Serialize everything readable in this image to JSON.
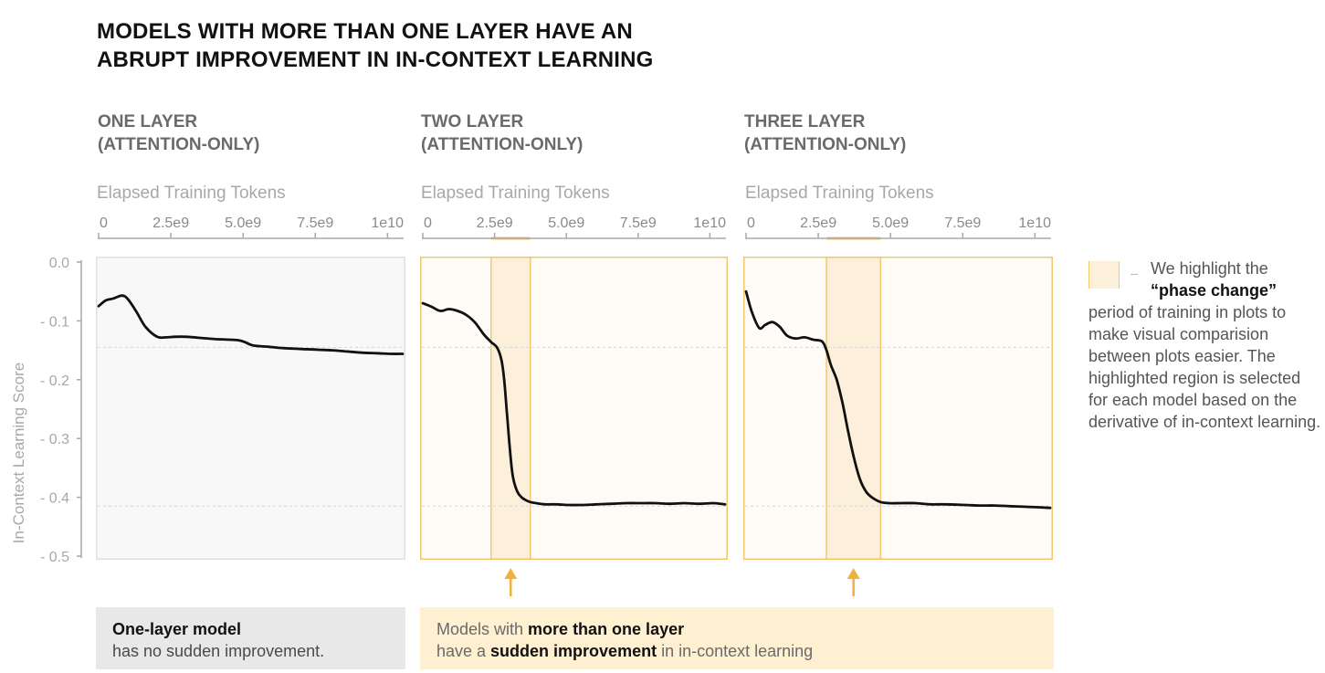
{
  "title_line1": "MODELS WITH MORE THAN ONE LAYER HAVE AN",
  "title_line2": "ABRUPT IMPROVEMENT IN IN-CONTEXT LEARNING",
  "y_axis_label": "In-Context Learning Score",
  "chart_data": [
    {
      "type": "line",
      "panel": "one",
      "title_line1": "ONE LAYER",
      "title_line2": "(ATTENTION-ONLY)",
      "xlabel": "Elapsed Training Tokens",
      "x_ticks": [
        "0",
        "2.5e9",
        "5.0e9",
        "7.5e9",
        "1e10"
      ],
      "x_tick_values": [
        0,
        2.5,
        5.0,
        7.5,
        10
      ],
      "xlim": [
        0,
        10.4
      ],
      "ylim": [
        0,
        -0.5
      ],
      "y_ticks": [
        "0.0",
        "- 0.1",
        "- 0.2",
        "- 0.3",
        "- 0.4",
        "- 0.5"
      ],
      "y_tick_values": [
        0,
        -0.1,
        -0.2,
        -0.3,
        -0.4,
        -0.5
      ],
      "reference_lines": [
        -0.145,
        -0.415
      ],
      "highlight": null,
      "series": [
        {
          "name": "ICL score",
          "x": [
            0,
            0.25,
            0.5,
            0.8,
            1.0,
            1.3,
            1.6,
            2.0,
            2.3,
            2.6,
            3.0,
            3.5,
            4.0,
            4.5,
            4.8,
            5.0,
            5.3,
            5.8,
            6.2,
            6.6,
            7.0,
            7.5,
            8.0,
            8.5,
            9.0,
            9.5,
            10.0,
            10.4
          ],
          "y": [
            -0.075,
            -0.065,
            -0.062,
            -0.057,
            -0.063,
            -0.085,
            -0.11,
            -0.127,
            -0.128,
            -0.127,
            -0.127,
            -0.129,
            -0.131,
            -0.132,
            -0.133,
            -0.136,
            -0.142,
            -0.144,
            -0.146,
            -0.147,
            -0.148,
            -0.149,
            -0.15,
            -0.152,
            -0.154,
            -0.155,
            -0.156,
            -0.156
          ]
        }
      ]
    },
    {
      "type": "line",
      "panel": "two",
      "title_line1": "TWO LAYER",
      "title_line2": "(ATTENTION-ONLY)",
      "xlabel": "Elapsed Training Tokens",
      "x_ticks": [
        "0",
        "2.5e9",
        "5.0e9",
        "7.5e9",
        "1e10"
      ],
      "x_tick_values": [
        0,
        2.5,
        5.0,
        7.5,
        10
      ],
      "xlim": [
        0,
        10.4
      ],
      "ylim": [
        0,
        -0.5
      ],
      "reference_lines": [
        -0.145,
        -0.415
      ],
      "highlight": [
        2.35,
        3.7
      ],
      "series": [
        {
          "name": "ICL score",
          "x": [
            0,
            0.3,
            0.6,
            0.9,
            1.2,
            1.5,
            1.8,
            2.1,
            2.35,
            2.55,
            2.7,
            2.8,
            2.9,
            3.0,
            3.1,
            3.25,
            3.4,
            3.55,
            3.7,
            3.9,
            4.2,
            4.6,
            5.0,
            5.5,
            6.0,
            6.5,
            7.0,
            7.5,
            8.0,
            8.5,
            9.0,
            9.5,
            10.0,
            10.4
          ],
          "y": [
            -0.07,
            -0.076,
            -0.083,
            -0.08,
            -0.083,
            -0.09,
            -0.103,
            -0.123,
            -0.136,
            -0.145,
            -0.165,
            -0.2,
            -0.26,
            -0.32,
            -0.365,
            -0.39,
            -0.4,
            -0.405,
            -0.408,
            -0.41,
            -0.412,
            -0.412,
            -0.413,
            -0.413,
            -0.412,
            -0.411,
            -0.41,
            -0.41,
            -0.41,
            -0.411,
            -0.41,
            -0.411,
            -0.41,
            -0.412
          ]
        }
      ]
    },
    {
      "type": "line",
      "panel": "three",
      "title_line1": "THREE LAYER",
      "title_line2": "(ATTENTION-ONLY)",
      "xlabel": "Elapsed Training Tokens",
      "x_ticks": [
        "0",
        "2.5e9",
        "5.0e9",
        "7.5e9",
        "1e10"
      ],
      "x_tick_values": [
        0,
        2.5,
        5.0,
        7.5,
        10
      ],
      "xlim": [
        0,
        10.4
      ],
      "ylim": [
        0,
        -0.5
      ],
      "reference_lines": [
        -0.145,
        -0.415
      ],
      "highlight": [
        2.75,
        4.6
      ],
      "series": [
        {
          "name": "ICL score",
          "x": [
            0,
            0.2,
            0.45,
            0.65,
            0.9,
            1.15,
            1.4,
            1.7,
            2.0,
            2.3,
            2.6,
            2.75,
            2.9,
            3.1,
            3.3,
            3.5,
            3.7,
            3.9,
            4.1,
            4.3,
            4.6,
            4.9,
            5.3,
            5.8,
            6.3,
            6.8,
            7.5,
            8.0,
            8.5,
            9.0,
            9.5,
            10.0,
            10.4
          ],
          "y": [
            -0.05,
            -0.085,
            -0.112,
            -0.107,
            -0.102,
            -0.11,
            -0.125,
            -0.13,
            -0.128,
            -0.132,
            -0.135,
            -0.15,
            -0.175,
            -0.2,
            -0.24,
            -0.29,
            -0.335,
            -0.37,
            -0.39,
            -0.4,
            -0.408,
            -0.41,
            -0.41,
            -0.41,
            -0.412,
            -0.412,
            -0.413,
            -0.414,
            -0.414,
            -0.415,
            -0.416,
            -0.417,
            -0.418
          ]
        }
      ]
    }
  ],
  "notes": {
    "one": {
      "bold": "One-layer model",
      "rest": "has no sudden improvement."
    },
    "multi": {
      "pre1": "Models with ",
      "bold1": "more than one layer",
      "pre2": "have a ",
      "bold2": "sudden improvement",
      "post2": " in in-context learning"
    }
  },
  "legend": {
    "line1": "We highlight the",
    "line2": "“phase change”",
    "rest": "period of training in plots to make visual comparision between plots easier. The highlighted region is selected for each model based on the derivative of in-context learning."
  },
  "colors": {
    "line": "#111111",
    "highlight_fill": "#fdf0da",
    "highlight_edge": "#f2c86e",
    "panel_one_bg": "#f8f8f8",
    "panel_multi_bg": "#fffcf7",
    "arrow": "#f0b23c",
    "axis": "#a8a8a8"
  }
}
